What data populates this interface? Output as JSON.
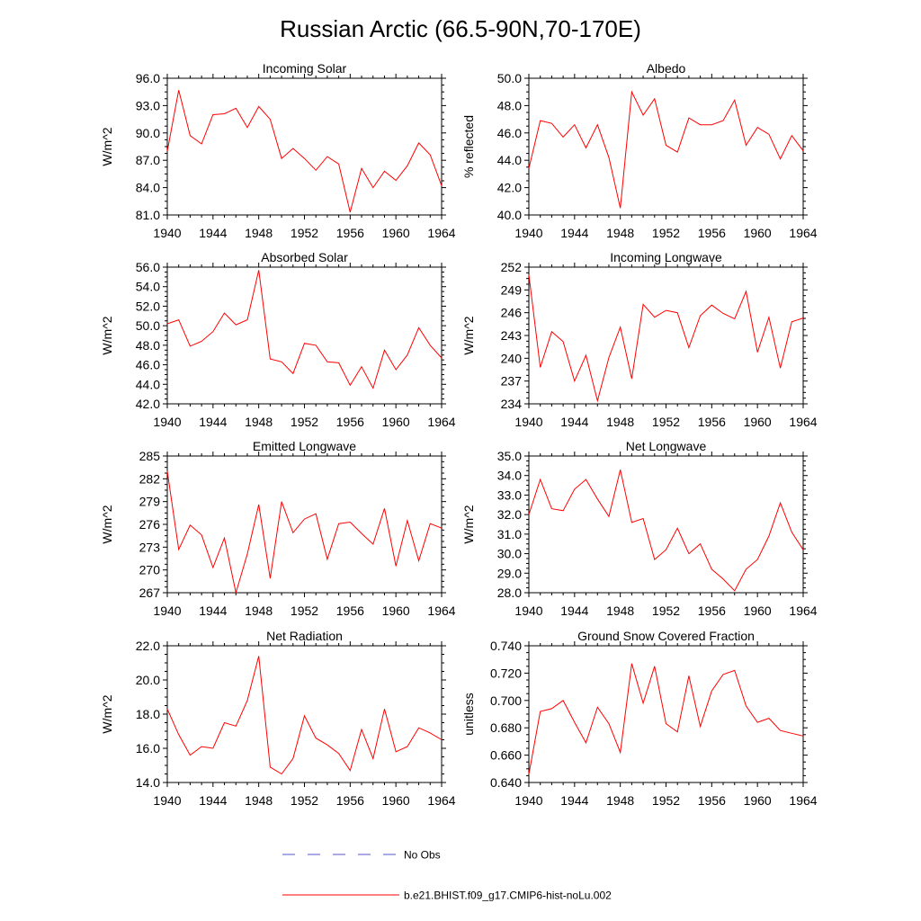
{
  "figure_title": "Russian Arctic (66.5-90N,70-170E)",
  "colors": {
    "model": "#ff0000",
    "obs": "#5555cc",
    "axis": "#000000"
  },
  "legend": {
    "obs_label": "No Obs",
    "model_label": "b.e21.BHIST.f09_g17.CMIP6-hist-noLu.002"
  },
  "chart_data": [
    {
      "type": "line",
      "title": "Incoming Solar",
      "ylabel": "W/m^2",
      "xlim": [
        1940,
        1964
      ],
      "ylim": [
        81,
        96
      ],
      "yticks": [
        81,
        84,
        87,
        90,
        93,
        96
      ],
      "ytick_labels": [
        "81.0",
        "84.0",
        "87.0",
        "90.0",
        "93.0",
        "96.0"
      ],
      "xticks": [
        1940,
        1944,
        1948,
        1952,
        1956,
        1960,
        1964
      ],
      "series": [
        {
          "name": "b.e21.BHIST.f09_g17.CMIP6-hist-noLu.002",
          "x": [
            1940,
            1941,
            1942,
            1943,
            1944,
            1945,
            1946,
            1947,
            1948,
            1949,
            1950,
            1951,
            1952,
            1953,
            1954,
            1955,
            1956,
            1957,
            1958,
            1959,
            1960,
            1961,
            1962,
            1963,
            1964
          ],
          "values": [
            88.0,
            94.7,
            89.7,
            88.8,
            92.0,
            92.1,
            92.7,
            90.6,
            92.9,
            91.5,
            87.2,
            88.3,
            87.2,
            85.9,
            87.4,
            86.6,
            81.3,
            86.1,
            84.0,
            85.8,
            84.8,
            86.4,
            88.9,
            87.6,
            84.2
          ]
        }
      ]
    },
    {
      "type": "line",
      "title": "Albedo",
      "ylabel": "% reflected",
      "xlim": [
        1940,
        1964
      ],
      "ylim": [
        40,
        50
      ],
      "yticks": [
        40,
        42,
        44,
        46,
        48,
        50
      ],
      "ytick_labels": [
        "40.0",
        "42.0",
        "44.0",
        "46.0",
        "48.0",
        "50.0"
      ],
      "xticks": [
        1940,
        1944,
        1948,
        1952,
        1956,
        1960,
        1964
      ],
      "series": [
        {
          "name": "b.e21.BHIST.f09_g17.CMIP6-hist-noLu.002",
          "x": [
            1940,
            1941,
            1942,
            1943,
            1944,
            1945,
            1946,
            1947,
            1948,
            1949,
            1950,
            1951,
            1952,
            1953,
            1954,
            1955,
            1956,
            1957,
            1958,
            1959,
            1960,
            1961,
            1962,
            1963,
            1964
          ],
          "values": [
            43.4,
            46.9,
            46.7,
            45.7,
            46.6,
            44.9,
            46.6,
            44.2,
            40.5,
            49.0,
            47.3,
            48.5,
            45.1,
            44.6,
            47.1,
            46.6,
            46.6,
            46.9,
            48.4,
            45.1,
            46.4,
            45.9,
            44.1,
            45.8,
            44.7
          ]
        }
      ]
    },
    {
      "type": "line",
      "title": "Absorbed Solar",
      "ylabel": "W/m^2",
      "xlim": [
        1940,
        1964
      ],
      "ylim": [
        42,
        56
      ],
      "yticks": [
        42,
        44,
        46,
        48,
        50,
        52,
        54,
        56
      ],
      "ytick_labels": [
        "42.0",
        "44.0",
        "46.0",
        "48.0",
        "50.0",
        "52.0",
        "54.0",
        "56.0"
      ],
      "xticks": [
        1940,
        1944,
        1948,
        1952,
        1956,
        1960,
        1964
      ],
      "series": [
        {
          "name": "b.e21.BHIST.f09_g17.CMIP6-hist-noLu.002",
          "x": [
            1940,
            1941,
            1942,
            1943,
            1944,
            1945,
            1946,
            1947,
            1948,
            1949,
            1950,
            1951,
            1952,
            1953,
            1954,
            1955,
            1956,
            1957,
            1958,
            1959,
            1960,
            1961,
            1962,
            1963,
            1964
          ],
          "values": [
            50.2,
            50.6,
            47.9,
            48.4,
            49.4,
            51.3,
            50.1,
            50.6,
            55.7,
            46.6,
            46.3,
            45.1,
            48.2,
            48.0,
            46.3,
            46.2,
            43.9,
            45.8,
            43.6,
            47.5,
            45.5,
            47.0,
            49.8,
            48.0,
            46.7
          ]
        }
      ]
    },
    {
      "type": "line",
      "title": "Incoming Longwave",
      "ylabel": "W/m^2",
      "xlim": [
        1940,
        1964
      ],
      "ylim": [
        234,
        252
      ],
      "yticks": [
        234,
        237,
        240,
        243,
        246,
        249,
        252
      ],
      "ytick_labels": [
        "234",
        "237",
        "240",
        "243",
        "246",
        "249",
        "252"
      ],
      "xticks": [
        1940,
        1944,
        1948,
        1952,
        1956,
        1960,
        1964
      ],
      "series": [
        {
          "name": "b.e21.BHIST.f09_g17.CMIP6-hist-noLu.002",
          "x": [
            1940,
            1941,
            1942,
            1943,
            1944,
            1945,
            1946,
            1947,
            1948,
            1949,
            1950,
            1951,
            1952,
            1953,
            1954,
            1955,
            1956,
            1957,
            1958,
            1959,
            1960,
            1961,
            1962,
            1963,
            1964
          ],
          "values": [
            251.0,
            238.8,
            243.5,
            242.2,
            237.0,
            240.4,
            234.4,
            240.1,
            244.1,
            237.3,
            247.1,
            245.4,
            246.3,
            246.0,
            241.4,
            245.6,
            247.0,
            245.9,
            245.2,
            248.8,
            240.8,
            245.4,
            238.7,
            244.8,
            245.3
          ]
        }
      ]
    },
    {
      "type": "line",
      "title": "Emitted Longwave",
      "ylabel": "W/m^2",
      "xlim": [
        1940,
        1964
      ],
      "ylim": [
        267,
        285
      ],
      "yticks": [
        267,
        270,
        273,
        276,
        279,
        282,
        285
      ],
      "ytick_labels": [
        "267",
        "270",
        "273",
        "276",
        "279",
        "282",
        "285"
      ],
      "xticks": [
        1940,
        1944,
        1948,
        1952,
        1956,
        1960,
        1964
      ],
      "series": [
        {
          "name": "b.e21.BHIST.f09_g17.CMIP6-hist-noLu.002",
          "x": [
            1940,
            1941,
            1942,
            1943,
            1944,
            1945,
            1946,
            1947,
            1948,
            1949,
            1950,
            1951,
            1952,
            1953,
            1954,
            1955,
            1956,
            1957,
            1958,
            1959,
            1960,
            1961,
            1962,
            1963,
            1964
          ],
          "values": [
            283.0,
            272.7,
            275.9,
            274.6,
            270.3,
            274.2,
            267.0,
            272.1,
            278.6,
            268.9,
            279.0,
            274.9,
            276.7,
            277.4,
            271.4,
            276.1,
            276.3,
            274.8,
            273.4,
            278.1,
            270.5,
            276.5,
            271.2,
            276.1,
            275.5
          ]
        }
      ]
    },
    {
      "type": "line",
      "title": "Net Longwave",
      "ylabel": "W/m^2",
      "xlim": [
        1940,
        1964
      ],
      "ylim": [
        28,
        35
      ],
      "yticks": [
        28,
        29,
        30,
        31,
        32,
        33,
        34,
        35
      ],
      "ytick_labels": [
        "28.0",
        "29.0",
        "30.0",
        "31.0",
        "32.0",
        "33.0",
        "34.0",
        "35.0"
      ],
      "xticks": [
        1940,
        1944,
        1948,
        1952,
        1956,
        1960,
        1964
      ],
      "series": [
        {
          "name": "b.e21.BHIST.f09_g17.CMIP6-hist-noLu.002",
          "x": [
            1940,
            1941,
            1942,
            1943,
            1944,
            1945,
            1946,
            1947,
            1948,
            1949,
            1950,
            1951,
            1952,
            1953,
            1954,
            1955,
            1956,
            1957,
            1958,
            1959,
            1960,
            1961,
            1962,
            1963,
            1964
          ],
          "values": [
            32.0,
            33.8,
            32.3,
            32.2,
            33.3,
            33.8,
            32.8,
            31.9,
            34.3,
            31.6,
            31.8,
            29.7,
            30.2,
            31.3,
            30.0,
            30.5,
            29.2,
            28.7,
            28.1,
            29.2,
            29.7,
            30.9,
            32.6,
            31.1,
            30.2
          ]
        }
      ]
    },
    {
      "type": "line",
      "title": "Net Radiation",
      "ylabel": "W/m^2",
      "xlim": [
        1940,
        1964
      ],
      "ylim": [
        14,
        22
      ],
      "yticks": [
        14,
        16,
        18,
        20,
        22
      ],
      "ytick_labels": [
        "14.0",
        "16.0",
        "18.0",
        "20.0",
        "22.0"
      ],
      "xticks": [
        1940,
        1944,
        1948,
        1952,
        1956,
        1960,
        1964
      ],
      "series": [
        {
          "name": "b.e21.BHIST.f09_g17.CMIP6-hist-noLu.002",
          "x": [
            1940,
            1941,
            1942,
            1943,
            1944,
            1945,
            1946,
            1947,
            1948,
            1949,
            1950,
            1951,
            1952,
            1953,
            1954,
            1955,
            1956,
            1957,
            1958,
            1959,
            1960,
            1961,
            1962,
            1963,
            1964
          ],
          "values": [
            18.3,
            16.8,
            15.6,
            16.1,
            16.0,
            17.5,
            17.3,
            18.8,
            21.4,
            14.9,
            14.5,
            15.4,
            17.9,
            16.6,
            16.2,
            15.7,
            14.7,
            17.1,
            15.4,
            18.3,
            15.8,
            16.1,
            17.2,
            16.9,
            16.5
          ]
        }
      ]
    },
    {
      "type": "line",
      "title": "Ground Snow Covered Fraction",
      "ylabel": "unitless",
      "xlim": [
        1940,
        1964
      ],
      "ylim": [
        0.64,
        0.74
      ],
      "yticks": [
        0.64,
        0.66,
        0.68,
        0.7,
        0.72,
        0.74
      ],
      "ytick_labels": [
        "0.640",
        "0.660",
        "0.680",
        "0.700",
        "0.720",
        "0.740"
      ],
      "xticks": [
        1940,
        1944,
        1948,
        1952,
        1956,
        1960,
        1964
      ],
      "series": [
        {
          "name": "b.e21.BHIST.f09_g17.CMIP6-hist-noLu.002",
          "x": [
            1940,
            1941,
            1942,
            1943,
            1944,
            1945,
            1946,
            1947,
            1948,
            1949,
            1950,
            1951,
            1952,
            1953,
            1954,
            1955,
            1956,
            1957,
            1958,
            1959,
            1960,
            1961,
            1962,
            1963,
            1964
          ],
          "values": [
            0.646,
            0.692,
            0.694,
            0.7,
            0.684,
            0.669,
            0.695,
            0.683,
            0.662,
            0.727,
            0.698,
            0.725,
            0.683,
            0.677,
            0.718,
            0.681,
            0.707,
            0.719,
            0.722,
            0.696,
            0.684,
            0.687,
            0.678,
            0.676,
            0.674
          ]
        }
      ]
    }
  ]
}
